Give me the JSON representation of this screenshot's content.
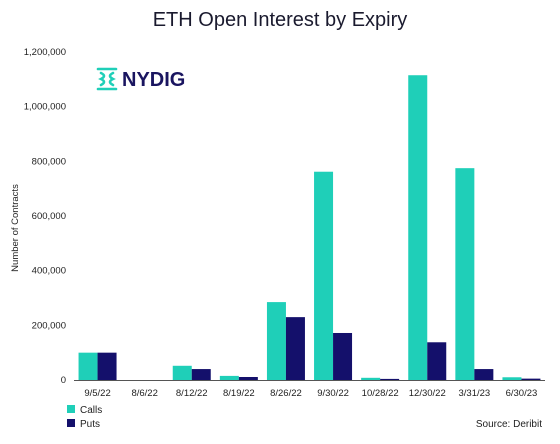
{
  "chart_data": {
    "type": "bar",
    "title": "ETH Open Interest by Expiry",
    "ylabel": "Number of Contracts",
    "xlabel": "",
    "ylim": [
      0,
      1200000
    ],
    "yticks": [
      0,
      200000,
      400000,
      600000,
      800000,
      1000000,
      1200000
    ],
    "ytick_labels": [
      "0",
      "200,000",
      "400,000",
      "600,000",
      "800,000",
      "1,000,000",
      "1,200,000"
    ],
    "categories": [
      "9/5/22",
      "8/6/22",
      "8/12/22",
      "8/19/22",
      "8/26/22",
      "9/30/22",
      "10/28/22",
      "12/30/22",
      "3/31/23",
      "6/30/23"
    ],
    "series": [
      {
        "name": "Calls",
        "color": "#1fcfb8",
        "values": [
          100000,
          0,
          52000,
          15000,
          285000,
          762000,
          8000,
          1115000,
          775000,
          10000
        ]
      },
      {
        "name": "Puts",
        "color": "#14106b",
        "values": [
          100000,
          0,
          40000,
          11000,
          230000,
          172000,
          4000,
          138000,
          40000,
          5000
        ]
      }
    ],
    "grid": false,
    "legend": "bottom-left"
  },
  "logo": {
    "text": "NYDIG",
    "icon": "nydig-logo-icon"
  },
  "source": "Source: Deribit",
  "colors": {
    "calls": "#1fcfb8",
    "puts": "#14106b",
    "axis": "#555555"
  }
}
